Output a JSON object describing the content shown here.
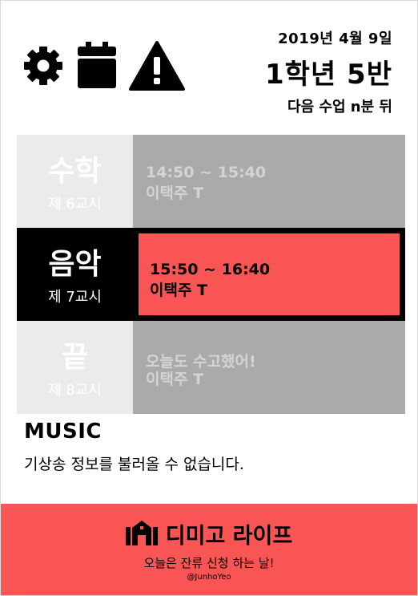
{
  "header": {
    "date": "2019년 4월 9일",
    "class_name": "1학년 5반",
    "next_class": "다음 수업 n분 뒤",
    "icons": [
      "gear-icon",
      "calendar-icon",
      "warning-icon"
    ]
  },
  "schedule": [
    {
      "subject": "수학",
      "period": "제 6교시",
      "time": "14:50 ~ 15:40",
      "teacher": "이택주 T",
      "state": "past"
    },
    {
      "subject": "음악",
      "period": "제 7교시",
      "time": "15:50 ~ 16:40",
      "teacher": "이택주 T",
      "state": "current"
    },
    {
      "subject": "끝",
      "period": "제 8교시",
      "time": "오늘도 수고했어!",
      "teacher": "이택주 T",
      "state": "future"
    }
  ],
  "weather": {
    "title": "MUSIC",
    "message": "기상송 정보를 불러올 수 없습니다."
  },
  "footer": {
    "brand": "디미고 라이프",
    "tagline": "오늘은 잔류 신청 하는 날!",
    "credit": "@JunhoYeo",
    "logo_icon": "school-building-icon"
  },
  "colors": {
    "accent": "#f95555",
    "past_left": "#ebebeb",
    "past_right": "#aaaaaa",
    "current_bg": "#000000"
  }
}
